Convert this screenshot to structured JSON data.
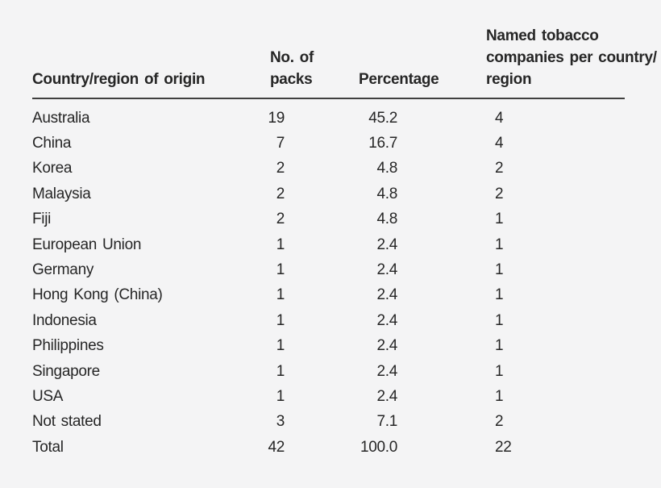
{
  "colors": {
    "background": "#f4f4f5",
    "text": "#262626",
    "rule": "#3f3f3f"
  },
  "table": {
    "header": {
      "country": "Country/region of origin",
      "packs_lines": [
        "No. of",
        "packs"
      ],
      "percentage": "Percentage",
      "companies_lines": [
        "Named tobacco",
        "companies per country/",
        "region"
      ]
    },
    "rows": [
      {
        "country": "Australia",
        "packs": "19",
        "percentage": "45.2",
        "companies": "4"
      },
      {
        "country": "China",
        "packs": "7",
        "percentage": "16.7",
        "companies": "4"
      },
      {
        "country": "Korea",
        "packs": "2",
        "percentage": "4.8",
        "companies": "2"
      },
      {
        "country": "Malaysia",
        "packs": "2",
        "percentage": "4.8",
        "companies": "2"
      },
      {
        "country": "Fiji",
        "packs": "2",
        "percentage": "4.8",
        "companies": "1"
      },
      {
        "country": "European Union",
        "packs": "1",
        "percentage": "2.4",
        "companies": "1"
      },
      {
        "country": "Germany",
        "packs": "1",
        "percentage": "2.4",
        "companies": "1"
      },
      {
        "country": "Hong Kong (China)",
        "packs": "1",
        "percentage": "2.4",
        "companies": "1"
      },
      {
        "country": "Indonesia",
        "packs": "1",
        "percentage": "2.4",
        "companies": "1"
      },
      {
        "country": "Philippines",
        "packs": "1",
        "percentage": "2.4",
        "companies": "1"
      },
      {
        "country": "Singapore",
        "packs": "1",
        "percentage": "2.4",
        "companies": "1"
      },
      {
        "country": "USA",
        "packs": "1",
        "percentage": "2.4",
        "companies": "1"
      },
      {
        "country": "Not stated",
        "packs": "3",
        "percentage": "7.1",
        "companies": "2"
      },
      {
        "country": "Total",
        "packs": "42",
        "percentage": "100.0",
        "companies": "22"
      }
    ]
  }
}
